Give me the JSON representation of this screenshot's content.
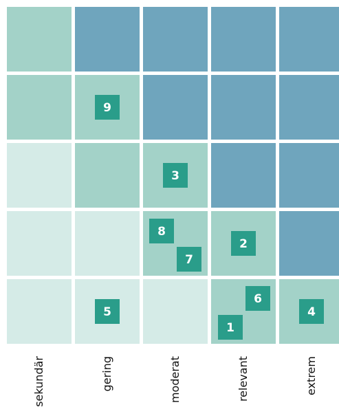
{
  "matrix": {
    "columns": [
      "sekundär",
      "gering",
      "moderat",
      "relevant",
      "extrem"
    ],
    "marker_color": "#2a9d8a",
    "rows": [
      [
        {
          "color": "#a3d2c8",
          "markers": []
        },
        {
          "color": "#6fa5bd",
          "markers": []
        },
        {
          "color": "#6fa5bd",
          "markers": []
        },
        {
          "color": "#6fa5bd",
          "markers": []
        },
        {
          "color": "#6fa5bd",
          "markers": []
        }
      ],
      [
        {
          "color": "#a3d2c8",
          "markers": []
        },
        {
          "color": "#a3d2c8",
          "markers": [
            "9"
          ]
        },
        {
          "color": "#6fa5bd",
          "markers": []
        },
        {
          "color": "#6fa5bd",
          "markers": []
        },
        {
          "color": "#6fa5bd",
          "markers": []
        }
      ],
      [
        {
          "color": "#d5ebe7",
          "markers": []
        },
        {
          "color": "#a3d2c8",
          "markers": []
        },
        {
          "color": "#a3d2c8",
          "markers": [
            "3"
          ]
        },
        {
          "color": "#6fa5bd",
          "markers": []
        },
        {
          "color": "#6fa5bd",
          "markers": []
        }
      ],
      [
        {
          "color": "#d5ebe7",
          "markers": []
        },
        {
          "color": "#d5ebe7",
          "markers": []
        },
        {
          "color": "#a3d2c8",
          "markers": [
            "8",
            "7"
          ]
        },
        {
          "color": "#a3d2c8",
          "markers": [
            "2"
          ]
        },
        {
          "color": "#6fa5bd",
          "markers": []
        }
      ],
      [
        {
          "color": "#d5ebe7",
          "markers": []
        },
        {
          "color": "#d5ebe7",
          "markers": [
            "5"
          ]
        },
        {
          "color": "#d5ebe7",
          "markers": []
        },
        {
          "color": "#a3d2c8",
          "markers": [
            "6",
            "1"
          ]
        },
        {
          "color": "#a3d2c8",
          "markers": [
            "4"
          ]
        }
      ]
    ]
  }
}
